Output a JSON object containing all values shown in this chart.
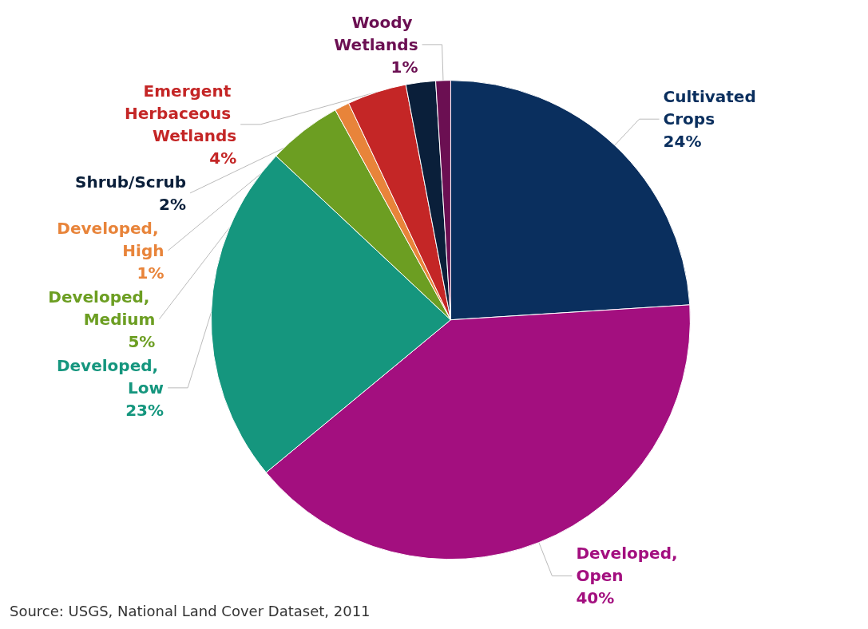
{
  "chart_data": {
    "type": "pie",
    "categories": [
      "Cultivated Crops",
      "Developed, Open",
      "Developed, Low",
      "Developed, Medium",
      "Developed, High",
      "Emergent Herbaceous Wetlands",
      "Shrub/Scrub",
      "Woody Wetlands"
    ],
    "values": [
      24,
      40,
      23,
      5,
      1,
      4,
      2,
      1
    ],
    "value_labels": [
      "24%",
      "40%",
      "23%",
      "5%",
      "1%",
      "4%",
      "2%",
      "1%"
    ],
    "colors": [
      "#0a2f5e",
      "#a30f7f",
      "#15967e",
      "#6c9e22",
      "#e8843a",
      "#c42626",
      "#0a1f3a",
      "#6b0f52"
    ],
    "legend": false,
    "annotations": [
      "Source: USGS, National Land Cover Dataset, 2011"
    ]
  }
}
